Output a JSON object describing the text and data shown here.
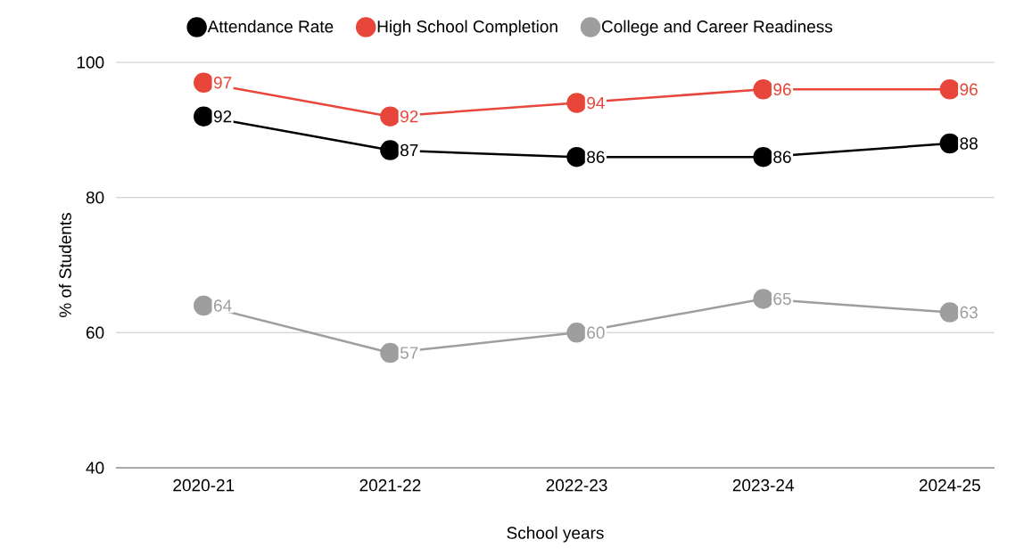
{
  "chart_data": {
    "type": "line",
    "xlabel": "School years",
    "ylabel": "% of Students",
    "categories": [
      "2020-21",
      "2021-22",
      "2022-23",
      "2023-24",
      "2024-25"
    ],
    "series": [
      {
        "name": "Attendance Rate",
        "color": "#000000",
        "values": [
          92,
          87,
          86,
          86,
          88
        ]
      },
      {
        "name": "High School Completion",
        "color": "#e8463a",
        "values": [
          97,
          92,
          94,
          96,
          96
        ]
      },
      {
        "name": "College and Career Readiness",
        "color": "#9e9e9e",
        "values": [
          64,
          57,
          60,
          65,
          63
        ]
      }
    ],
    "ylim": [
      40,
      100
    ],
    "yticks": [
      40,
      60,
      80,
      100
    ],
    "grid": "y",
    "legend": "top",
    "marker": "circle",
    "line_style": "solid",
    "data_labels": true
  }
}
